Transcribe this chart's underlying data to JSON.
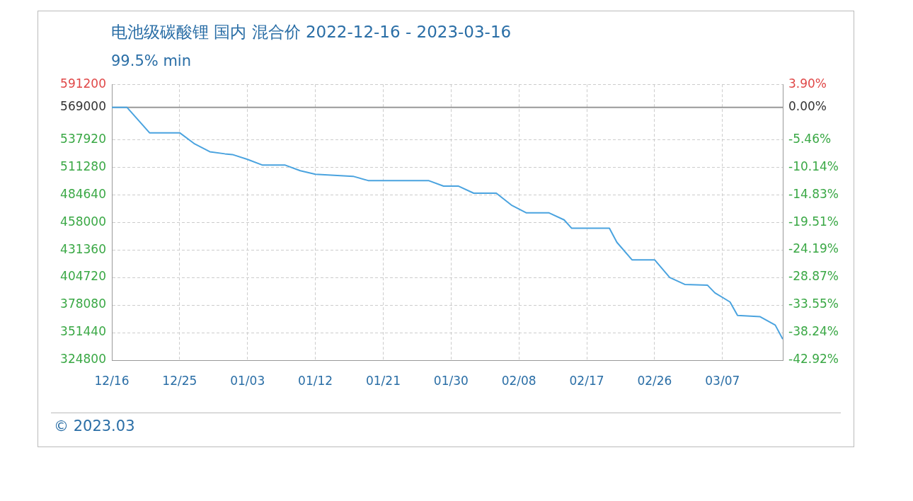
{
  "chart_data": {
    "type": "line",
    "title": "电池级碳酸锂 国内 混合价 2022-12-16 - 2023-03-16",
    "subtitle": "99.5% min",
    "x": [
      "2022-12-16",
      "2022-12-18",
      "2022-12-21",
      "2022-12-25",
      "2022-12-27",
      "2022-12-29",
      "2022-12-31",
      "2023-01-01",
      "2023-01-03",
      "2023-01-05",
      "2023-01-08",
      "2023-01-10",
      "2023-01-12",
      "2023-01-17",
      "2023-01-19",
      "2023-01-27",
      "2023-01-29",
      "2023-01-31",
      "2023-02-02",
      "2023-02-05",
      "2023-02-07",
      "2023-02-09",
      "2023-02-12",
      "2023-02-14",
      "2023-02-15",
      "2023-02-20",
      "2023-02-21",
      "2023-02-23",
      "2023-02-26",
      "2023-02-28",
      "2023-03-02",
      "2023-03-05",
      "2023-03-06",
      "2023-03-08",
      "2023-03-09",
      "2023-03-12",
      "2023-03-14",
      "2023-03-15"
    ],
    "series": [
      {
        "color": "#4aa3df",
        "values": [
          569000,
          569000,
          544400,
          544400,
          533600,
          526100,
          524100,
          523400,
          518700,
          513200,
          513200,
          507800,
          504400,
          502400,
          498300,
          498300,
          492900,
          492900,
          486100,
          486100,
          474600,
          467100,
          467100,
          460300,
          452200,
          452200,
          438600,
          421700,
          421700,
          404700,
          398000,
          397300,
          389800,
          381000,
          368100,
          366800,
          358700,
          345100
        ]
      }
    ],
    "xlim": [
      "2022-12-16",
      "2023-03-15"
    ],
    "xticks": [
      {
        "value": "2022-12-16",
        "label": "12/16"
      },
      {
        "value": "2022-12-25",
        "label": "12/25"
      },
      {
        "value": "2023-01-03",
        "label": "01/03"
      },
      {
        "value": "2023-01-12",
        "label": "01/12"
      },
      {
        "value": "2023-01-21",
        "label": "01/21"
      },
      {
        "value": "2023-01-30",
        "label": "01/30"
      },
      {
        "value": "2023-02-08",
        "label": "02/08"
      },
      {
        "value": "2023-02-17",
        "label": "02/17"
      },
      {
        "value": "2023-02-26",
        "label": "02/26"
      },
      {
        "value": "2023-03-07",
        "label": "03/07"
      }
    ],
    "ylim": [
      324800,
      591200
    ],
    "yticks": [
      324800,
      351440,
      378080,
      404720,
      431360,
      458000,
      484640,
      511280,
      537920,
      569000,
      591200
    ],
    "y2lim": [
      -42.92,
      3.9
    ],
    "y2ticks": [
      {
        "value": -42.92,
        "label": "-42.92%"
      },
      {
        "value": -38.24,
        "label": "-38.24%"
      },
      {
        "value": -33.55,
        "label": "-33.55%"
      },
      {
        "value": -28.87,
        "label": "-28.87%"
      },
      {
        "value": -24.19,
        "label": "-24.19%"
      },
      {
        "value": -19.51,
        "label": "-19.51%"
      },
      {
        "value": -14.83,
        "label": "-14.83%"
      },
      {
        "value": -10.14,
        "label": "-10.14%"
      },
      {
        "value": -5.46,
        "label": "-5.46%"
      },
      {
        "value": 0,
        "label": "0.00%"
      },
      {
        "value": 3.9,
        "label": "3.90%"
      }
    ],
    "ref_lines": [
      {
        "axis": "y",
        "value": 569000,
        "color": "#999999"
      }
    ],
    "grid": true,
    "legend": false,
    "marker": "none",
    "line_style": "solid",
    "annotations": [
      "© 2023.03"
    ]
  }
}
